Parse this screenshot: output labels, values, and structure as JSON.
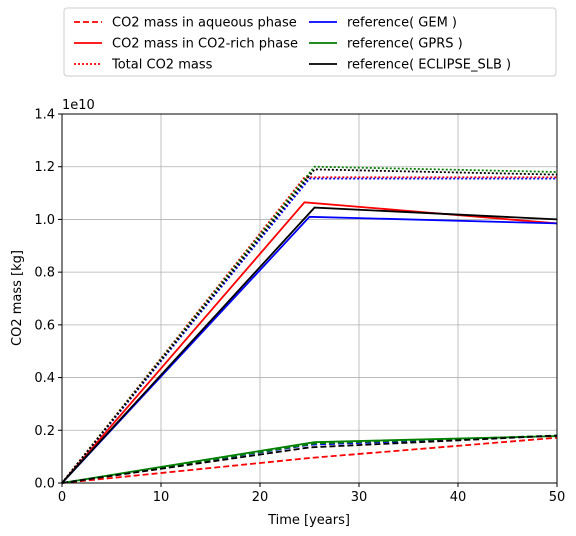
{
  "chart_data": {
    "type": "line",
    "title": "",
    "xlabel": "Time [years]",
    "ylabel": "CO2 mass [kg]",
    "y_offset_label": "1e10",
    "y_scale_factor": 10000000000,
    "xlim": [
      0,
      50
    ],
    "ylim": [
      0,
      14000000000
    ],
    "xticks": [
      0,
      10,
      20,
      30,
      40,
      50
    ],
    "yticks": [
      0,
      2000000000,
      4000000000,
      6000000000,
      8000000000,
      10000000000,
      12000000000,
      14000000000
    ],
    "ytick_labels": [
      "0.0",
      "0.2",
      "0.4",
      "0.6",
      "0.8",
      "1.0",
      "1.2",
      "1.4"
    ],
    "xtick_labels": [
      "0",
      "10",
      "20",
      "30",
      "40",
      "50"
    ],
    "grid": true,
    "legend_position": "top, outside plot, two columns",
    "legend_order": [
      "CO2 mass in aqueous phase",
      "CO2 mass in CO2-rich phase",
      "Total CO2 mass",
      "reference( GEM )",
      "reference( GPRS )",
      "reference( ECLIPSE_SLB )"
    ],
    "legend": [
      {
        "label": "CO2 mass in aqueous phase",
        "color": "#ff0000",
        "dash": "dashed"
      },
      {
        "label": "CO2 mass in CO2-rich phase",
        "color": "#ff0000",
        "dash": "solid"
      },
      {
        "label": "Total CO2 mass",
        "color": "#ff0000",
        "dash": "dotted"
      },
      {
        "label": "reference( GEM )",
        "color": "#0000ff",
        "dash": "solid"
      },
      {
        "label": "reference( GPRS )",
        "color": "#008000",
        "dash": "solid"
      },
      {
        "label": "reference( ECLIPSE_SLB )",
        "color": "#000000",
        "dash": "solid"
      }
    ],
    "series": [
      {
        "color": "#ff0000",
        "dash": "dashed",
        "x": [
          0,
          25,
          50
        ],
        "y": [
          0,
          950000000,
          1720000000
        ]
      },
      {
        "color": "#ff0000",
        "dash": "solid",
        "x": [
          0,
          24.5,
          50
        ],
        "y": [
          0,
          10650000000,
          9850000000
        ]
      },
      {
        "color": "#ff0000",
        "dash": "dotted",
        "x": [
          0,
          24.5,
          50
        ],
        "y": [
          0,
          11600000000,
          11600000000
        ]
      },
      {
        "color": "#0000ff",
        "dash": "dashed",
        "x": [
          0,
          25,
          50
        ],
        "y": [
          0,
          1450000000,
          1800000000
        ]
      },
      {
        "color": "#0000ff",
        "dash": "solid",
        "x": [
          0,
          25,
          50
        ],
        "y": [
          0,
          10100000000,
          9850000000
        ]
      },
      {
        "color": "#0000ff",
        "dash": "dotted",
        "x": [
          0,
          25,
          50
        ],
        "y": [
          0,
          11550000000,
          11550000000
        ]
      },
      {
        "color": "#008000",
        "dash": "dashed",
        "x": [
          0,
          25.5,
          50
        ],
        "y": [
          0,
          1500000000,
          1800000000
        ]
      },
      {
        "color": "#008000",
        "dash": "solid",
        "x": [
          0,
          25.5,
          50
        ],
        "y": [
          0,
          1550000000,
          1780000000
        ]
      },
      {
        "color": "#008000",
        "dash": "dotted",
        "x": [
          0,
          25.5,
          50
        ],
        "y": [
          0,
          12000000000,
          11800000000
        ]
      },
      {
        "color": "#000000",
        "dash": "dashed",
        "x": [
          0,
          25,
          50
        ],
        "y": [
          0,
          1350000000,
          1800000000
        ]
      },
      {
        "color": "#000000",
        "dash": "solid",
        "x": [
          0,
          25.5,
          50
        ],
        "y": [
          0,
          10450000000,
          10000000000
        ]
      },
      {
        "color": "#000000",
        "dash": "dotted",
        "x": [
          0,
          25.5,
          50
        ],
        "y": [
          0,
          11900000000,
          11700000000
        ]
      }
    ]
  }
}
